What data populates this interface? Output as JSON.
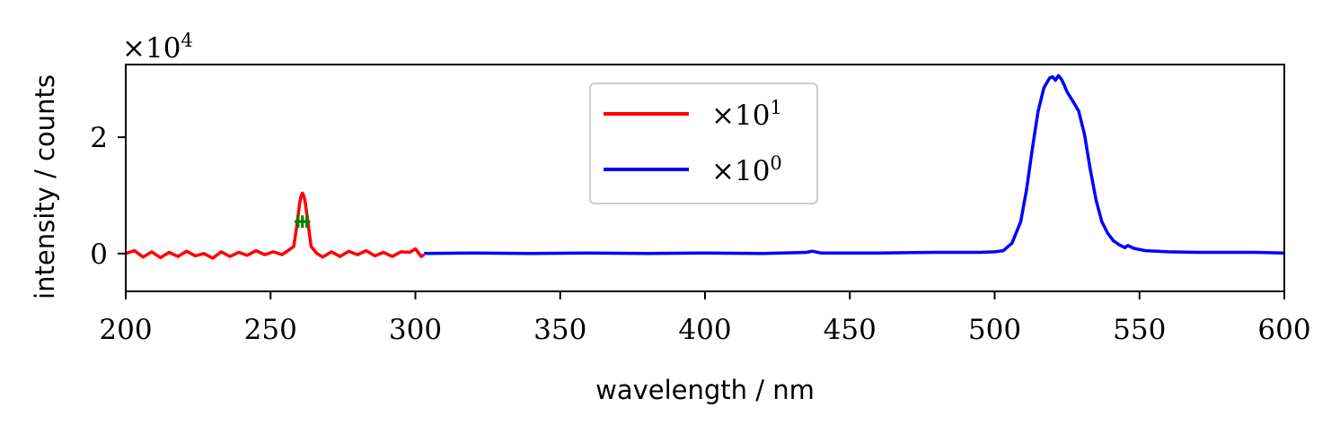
{
  "chart_data": {
    "type": "line",
    "xlabel": "wavelength / nm",
    "ylabel": "intensity / counts",
    "y_scale_label": "×10",
    "y_scale_exponent": "4",
    "xlim": [
      200,
      600
    ],
    "ylim": [
      -0.65,
      3.25
    ],
    "y_units_multiplier": 10000,
    "xticks": [
      200,
      250,
      300,
      350,
      400,
      450,
      500,
      550,
      600
    ],
    "yticks": [
      0,
      2
    ],
    "grid": false,
    "legend_placement": "upper-center",
    "series": [
      {
        "name_base": "×10",
        "name_exponent": "1",
        "color": "#ff0000",
        "x": [
          200,
          203,
          206,
          209,
          212,
          215,
          218,
          221,
          224,
          227,
          230,
          233,
          236,
          239,
          242,
          245,
          248,
          251,
          254,
          256,
          258,
          259,
          260,
          260.5,
          261,
          261.5,
          262,
          263,
          264,
          266,
          268,
          271,
          274,
          277,
          280,
          283,
          286,
          289,
          292,
          295,
          298,
          300,
          302,
          303
        ],
        "y": [
          0.0,
          0.05,
          -0.06,
          0.03,
          -0.07,
          0.02,
          -0.05,
          0.04,
          -0.04,
          0.0,
          -0.08,
          0.03,
          -0.05,
          0.02,
          -0.03,
          0.05,
          -0.02,
          0.03,
          -0.02,
          0.05,
          0.12,
          0.45,
          0.85,
          0.98,
          1.04,
          0.99,
          0.88,
          0.5,
          0.12,
          0.0,
          -0.06,
          0.03,
          -0.05,
          0.04,
          -0.02,
          0.05,
          -0.04,
          0.02,
          -0.05,
          0.03,
          0.02,
          0.08,
          -0.05,
          -0.02
        ]
      },
      {
        "name_base": "×10",
        "name_exponent": "0",
        "color": "#0000ff",
        "x": [
          303,
          320,
          340,
          360,
          380,
          400,
          420,
          435,
          437,
          440,
          460,
          480,
          495,
          500,
          503,
          506,
          509,
          511,
          513,
          515,
          517,
          519,
          520,
          521,
          522,
          523,
          524,
          525,
          527,
          529,
          531,
          533,
          535,
          537,
          539,
          541,
          543,
          545,
          546,
          548,
          552,
          560,
          570,
          580,
          590,
          600
        ],
        "y": [
          0.0,
          0.01,
          0.0,
          0.01,
          0.0,
          0.01,
          0.0,
          0.02,
          0.04,
          0.01,
          0.01,
          0.02,
          0.02,
          0.03,
          0.05,
          0.18,
          0.55,
          1.1,
          1.8,
          2.45,
          2.85,
          3.02,
          3.04,
          2.98,
          3.06,
          3.0,
          2.9,
          2.78,
          2.62,
          2.45,
          2.05,
          1.45,
          0.92,
          0.55,
          0.35,
          0.22,
          0.15,
          0.1,
          0.14,
          0.09,
          0.05,
          0.03,
          0.02,
          0.02,
          0.02,
          0.01
        ]
      }
    ],
    "markers": [
      {
        "color": "#008000",
        "x": [
          259.5,
          261.0,
          262.5
        ],
        "y": [
          0.55,
          0.55,
          0.55
        ],
        "xerr": [
          1.2,
          1.2,
          1.2
        ]
      }
    ]
  }
}
